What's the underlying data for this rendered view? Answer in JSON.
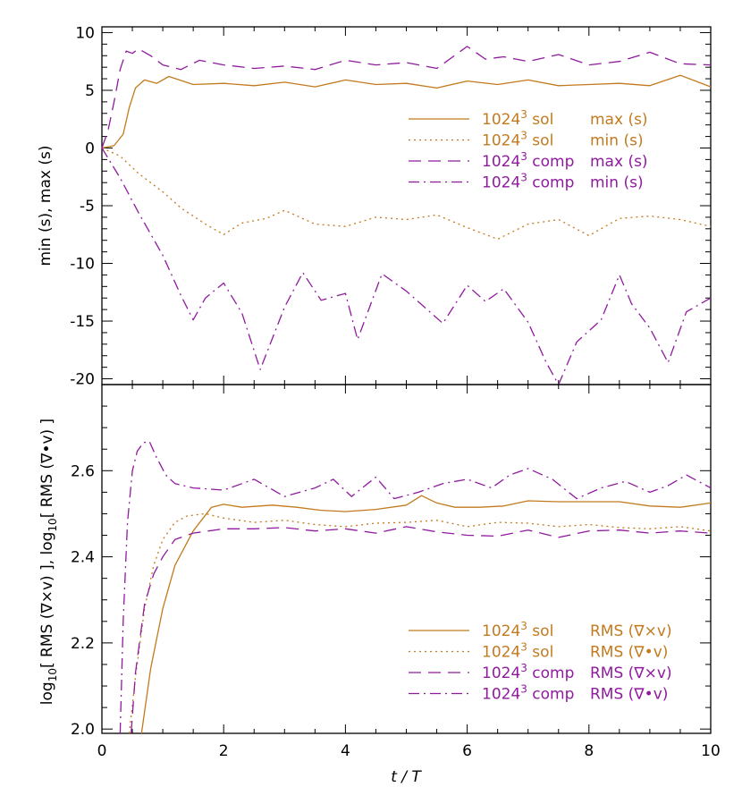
{
  "colors": {
    "sol": "#c27a1e",
    "comp": "#8f1a9e"
  },
  "chart_data": [
    {
      "type": "line",
      "panel": "top",
      "ylabel": "min (s), max (s)",
      "xlim": [
        0,
        10
      ],
      "ylim": [
        -20.5,
        10.5
      ],
      "x_ticks": [
        "0",
        "2",
        "4",
        "6",
        "8",
        "10"
      ],
      "y_ticks": [
        "10",
        "5",
        "0",
        "-5",
        "-10",
        "-15",
        "-20"
      ],
      "y_tick_values": [
        10,
        5,
        0,
        -5,
        -10,
        -15,
        -20
      ],
      "legend_position": "right",
      "series": [
        {
          "id": "sol_max",
          "label": "1024",
          "label_sup": "3",
          "case": "sol",
          "quantity": "max (s)",
          "color_key": "sol",
          "dash": "solid",
          "x": [
            0,
            0.2,
            0.35,
            0.45,
            0.55,
            0.7,
            0.9,
            1.1,
            1.5,
            2,
            2.5,
            3,
            3.5,
            4,
            4.5,
            5,
            5.5,
            6,
            6.5,
            7,
            7.5,
            8,
            8.5,
            9,
            9.5,
            10
          ],
          "y": [
            0,
            0.2,
            1.2,
            3.5,
            5.2,
            5.9,
            5.6,
            6.2,
            5.5,
            5.6,
            5.4,
            5.7,
            5.3,
            5.9,
            5.5,
            5.6,
            5.2,
            5.8,
            5.5,
            5.9,
            5.4,
            5.5,
            5.6,
            5.4,
            6.3,
            5.3
          ]
        },
        {
          "id": "sol_min",
          "label": "1024",
          "label_sup": "3",
          "case": "sol",
          "quantity": "min (s)",
          "color_key": "sol",
          "dash": "dotted",
          "x": [
            0,
            0.3,
            0.6,
            1.0,
            1.3,
            1.7,
            2.0,
            2.3,
            2.7,
            3.0,
            3.5,
            4.0,
            4.5,
            5.0,
            5.5,
            6.0,
            6.5,
            7.0,
            7.5,
            8.0,
            8.5,
            9.0,
            9.5,
            10
          ],
          "y": [
            0,
            -0.7,
            -2.2,
            -3.8,
            -5.2,
            -6.6,
            -7.5,
            -6.5,
            -6.1,
            -5.4,
            -6.6,
            -6.8,
            -6.0,
            -6.2,
            -5.8,
            -6.9,
            -7.9,
            -6.6,
            -6.2,
            -7.6,
            -6.1,
            -5.9,
            -6.2,
            -6.8
          ]
        },
        {
          "id": "comp_max",
          "label": "1024",
          "label_sup": "3",
          "case": "comp",
          "quantity": "max (s)",
          "color_key": "comp",
          "dash": "longdash",
          "x": [
            0,
            0.1,
            0.2,
            0.3,
            0.4,
            0.5,
            0.6,
            0.8,
            1.0,
            1.3,
            1.6,
            2.0,
            2.5,
            3.0,
            3.5,
            4.0,
            4.5,
            5.0,
            5.5,
            6.0,
            6.3,
            6.6,
            7.0,
            7.5,
            8.0,
            8.5,
            9.0,
            9.5,
            10
          ],
          "y": [
            0,
            1.5,
            4.0,
            6.8,
            8.4,
            8.2,
            8.6,
            8.0,
            7.2,
            6.8,
            7.6,
            7.2,
            6.9,
            7.1,
            6.8,
            7.6,
            7.2,
            7.4,
            6.9,
            8.8,
            7.7,
            7.9,
            7.5,
            8.1,
            7.2,
            7.5,
            8.3,
            7.3,
            7.2
          ]
        },
        {
          "id": "comp_min",
          "label": "1024",
          "label_sup": "3",
          "case": "comp",
          "quantity": "min (s)",
          "color_key": "comp",
          "dash": "dashdot",
          "x": [
            0,
            0.3,
            0.6,
            1.0,
            1.3,
            1.5,
            1.7,
            2.0,
            2.3,
            2.6,
            3.0,
            3.3,
            3.6,
            4.0,
            4.2,
            4.6,
            5.0,
            5.3,
            5.6,
            6.0,
            6.3,
            6.6,
            7.0,
            7.3,
            7.5,
            7.8,
            8.2,
            8.5,
            8.7,
            9.0,
            9.3,
            9.6,
            10
          ],
          "y": [
            0,
            -2.6,
            -5.6,
            -9.3,
            -12.8,
            -14.9,
            -13.0,
            -11.7,
            -14.3,
            -19.2,
            -13.8,
            -10.8,
            -13.2,
            -12.6,
            -16.6,
            -10.9,
            -12.4,
            -13.8,
            -15.2,
            -11.9,
            -13.3,
            -12.2,
            -15.1,
            -18.6,
            -20.5,
            -16.8,
            -14.9,
            -11.0,
            -13.5,
            -15.6,
            -18.6,
            -14.2,
            -13.0
          ]
        }
      ]
    },
    {
      "type": "line",
      "panel": "bottom",
      "xlabel": "t / T",
      "ylabel_parts": [
        "log",
        "10",
        "[ RMS (∇×v) ], log",
        "10",
        "[ RMS (∇•v) ]"
      ],
      "xlim": [
        0,
        10
      ],
      "ylim": [
        1.99,
        2.8
      ],
      "x_ticks": [
        "0",
        "2",
        "4",
        "6",
        "8",
        "10"
      ],
      "y_ticks": [
        "2.0",
        "2.2",
        "2.4",
        "2.6"
      ],
      "y_tick_values": [
        2.0,
        2.2,
        2.4,
        2.6
      ],
      "legend_position": "bottom-right",
      "series": [
        {
          "id": "sol_curl",
          "label": "1024",
          "label_sup": "3",
          "case": "sol",
          "quantity": "RMS (∇×v)",
          "color_key": "sol",
          "dash": "solid",
          "x": [
            0.65,
            0.8,
            1.0,
            1.2,
            1.5,
            1.8,
            2.0,
            2.3,
            2.8,
            3.2,
            3.6,
            4.0,
            4.5,
            5.0,
            5.25,
            5.5,
            5.8,
            6.2,
            6.6,
            7.0,
            7.5,
            8.0,
            8.5,
            9.0,
            9.5,
            10
          ],
          "y": [
            1.99,
            2.14,
            2.28,
            2.38,
            2.46,
            2.515,
            2.522,
            2.515,
            2.52,
            2.515,
            2.508,
            2.505,
            2.51,
            2.52,
            2.542,
            2.525,
            2.515,
            2.515,
            2.518,
            2.53,
            2.528,
            2.528,
            2.528,
            2.518,
            2.515,
            2.525
          ]
        },
        {
          "id": "sol_div",
          "label": "1024",
          "label_sup": "3",
          "case": "sol",
          "quantity": "RMS (∇•v)",
          "color_key": "sol",
          "dash": "dotted",
          "x": [
            0.45,
            0.55,
            0.7,
            0.85,
            1.0,
            1.2,
            1.4,
            1.7,
            2.0,
            2.5,
            3.0,
            3.5,
            4.0,
            4.5,
            5.0,
            5.5,
            6.0,
            6.5,
            7.0,
            7.5,
            8.0,
            8.5,
            9.0,
            9.5,
            10
          ],
          "y": [
            1.99,
            2.12,
            2.28,
            2.38,
            2.44,
            2.48,
            2.495,
            2.5,
            2.49,
            2.48,
            2.485,
            2.475,
            2.47,
            2.478,
            2.48,
            2.485,
            2.47,
            2.48,
            2.478,
            2.47,
            2.475,
            2.468,
            2.465,
            2.47,
            2.46
          ]
        },
        {
          "id": "comp_curl",
          "label": "1024",
          "label_sup": "3",
          "case": "comp",
          "quantity": "RMS (∇×v)",
          "color_key": "comp",
          "dash": "longdash",
          "x": [
            0.48,
            0.55,
            0.7,
            0.85,
            1.0,
            1.2,
            1.5,
            2.0,
            2.5,
            3.0,
            3.5,
            4.0,
            4.5,
            5.0,
            5.5,
            6.0,
            6.5,
            7.0,
            7.5,
            8.0,
            8.5,
            9.0,
            9.5,
            10
          ],
          "y": [
            1.99,
            2.13,
            2.29,
            2.36,
            2.4,
            2.44,
            2.455,
            2.465,
            2.465,
            2.468,
            2.46,
            2.465,
            2.455,
            2.47,
            2.458,
            2.45,
            2.448,
            2.462,
            2.445,
            2.46,
            2.462,
            2.455,
            2.46,
            2.455
          ]
        },
        {
          "id": "comp_div",
          "label": "1024",
          "label_sup": "3",
          "case": "comp",
          "quantity": "RMS (∇•v)",
          "color_key": "comp",
          "dash": "dashdot",
          "x": [
            0.3,
            0.35,
            0.42,
            0.5,
            0.58,
            0.68,
            0.78,
            0.9,
            1.05,
            1.2,
            1.5,
            2.0,
            2.5,
            3.0,
            3.5,
            3.8,
            4.1,
            4.5,
            4.8,
            5.2,
            5.6,
            6.0,
            6.4,
            6.7,
            7.0,
            7.4,
            7.8,
            8.2,
            8.6,
            9.0,
            9.3,
            9.6,
            10
          ],
          "y": [
            1.99,
            2.25,
            2.48,
            2.6,
            2.645,
            2.665,
            2.668,
            2.63,
            2.59,
            2.57,
            2.56,
            2.555,
            2.58,
            2.54,
            2.56,
            2.58,
            2.54,
            2.585,
            2.535,
            2.55,
            2.57,
            2.58,
            2.56,
            2.59,
            2.605,
            2.58,
            2.535,
            2.56,
            2.575,
            2.55,
            2.565,
            2.59,
            2.56
          ]
        }
      ]
    }
  ]
}
